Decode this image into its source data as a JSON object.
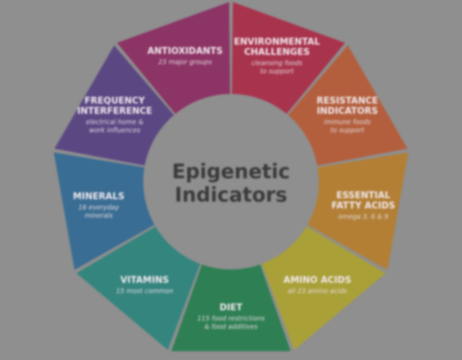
{
  "center": {
    "line1": "Epigenetic",
    "line2": "Indicators"
  },
  "segments": [
    {
      "title": [
        "ENVIRONMENTAL",
        "CHALLENGES"
      ],
      "subtitle": [
        "cleansing foods",
        "to support"
      ],
      "color": "#a8334d"
    },
    {
      "title": [
        "RESISTANCE",
        "INDICATORS"
      ],
      "subtitle": [
        "immune foods",
        "to support"
      ],
      "color": "#b35f3d"
    },
    {
      "title": [
        "ESSENTIAL",
        "FATTY ACIDS"
      ],
      "subtitle": [
        "omega 3, 6 & 9"
      ],
      "color": "#b27f35"
    },
    {
      "title": [
        "AMINO ACIDS"
      ],
      "subtitle": [
        "all 23 amino acids"
      ],
      "color": "#aaa038"
    },
    {
      "title": [
        "DIET"
      ],
      "subtitle": [
        "115 food restrictions",
        "& food additives"
      ],
      "color": "#2e7f54"
    },
    {
      "title": [
        "VITAMINS"
      ],
      "subtitle": [
        "15 most common"
      ],
      "color": "#35857f"
    },
    {
      "title": [
        "MINERALS"
      ],
      "subtitle": [
        "16 everyday",
        "minerals"
      ],
      "color": "#3a6d93"
    },
    {
      "title": [
        "FREQUENCY",
        "INTERFERENCE"
      ],
      "subtitle": [
        "electrical home &",
        "work influences"
      ],
      "color": "#5b4883"
    },
    {
      "title": [
        "ANTIOXIDANTS"
      ],
      "subtitle": [
        "23 major groups"
      ],
      "color": "#8c3465"
    }
  ]
}
